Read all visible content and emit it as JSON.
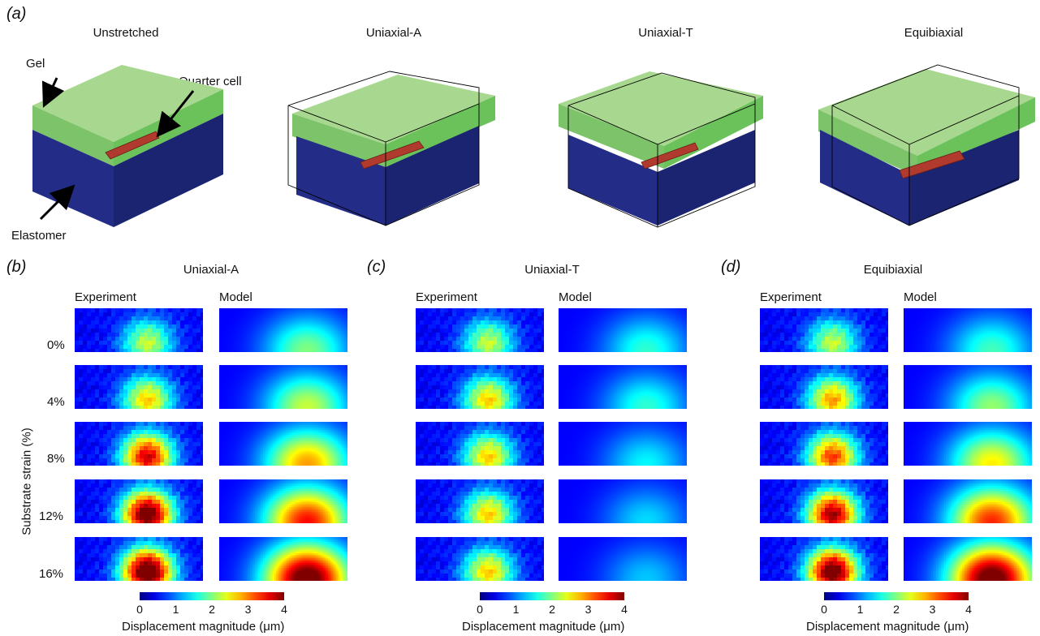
{
  "panel_a": {
    "letter_open": "(",
    "letter": "a",
    "letter_close": ")",
    "titles": [
      "Unstretched",
      "Uniaxial-A",
      "Uniaxial-T",
      "Equibiaxial"
    ],
    "annotations": {
      "gel": "Gel",
      "quarter_cell": "Quarter cell",
      "elastomer": "Elastomer"
    }
  },
  "panels": [
    {
      "letter": "b",
      "title": "Uniaxial-A",
      "experiment_label": "Experiment",
      "model_label": "Model"
    },
    {
      "letter": "c",
      "title": "Uniaxial-T",
      "experiment_label": "Experiment",
      "model_label": "Model"
    },
    {
      "letter": "d",
      "title": "Equibiaxial",
      "experiment_label": "Experiment",
      "model_label": "Model"
    }
  ],
  "strain_axis_label": "Substrate strain (%)",
  "strain_levels": [
    "0%",
    "4%",
    "8%",
    "12%",
    "16%"
  ],
  "colorbar": {
    "label": "Displacement magnitude (μm)",
    "ticks": [
      "0",
      "1",
      "2",
      "3",
      "4"
    ],
    "min": 0,
    "max": 4,
    "colormap": "jet"
  },
  "colors": {
    "gel": "#a8d88f",
    "gel_side": "#6cc25a",
    "elastomer": "#1f2a80",
    "elastomer_side": "#19226b",
    "cell": "#b03a2e"
  }
}
